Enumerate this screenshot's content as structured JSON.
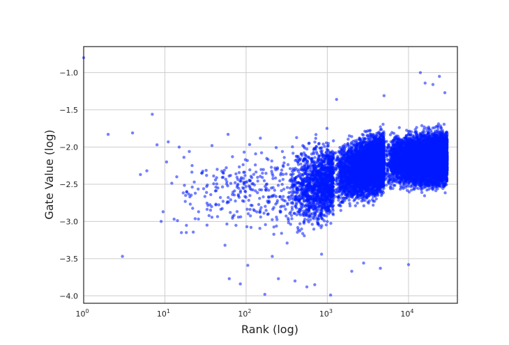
{
  "chart_data": {
    "type": "scatter",
    "title": "",
    "xlabel": "Rank (log)",
    "ylabel": "Gate Value (log)",
    "x_scale": "log",
    "xlim": [
      1,
      40000
    ],
    "ylim": [
      -4.1,
      -0.65
    ],
    "grid": true,
    "legend": "none",
    "point_color": "#0019ff",
    "x_ticks": [
      {
        "value": 1,
        "base": "10",
        "exp": "0"
      },
      {
        "value": 10,
        "base": "10",
        "exp": "1"
      },
      {
        "value": 100,
        "base": "10",
        "exp": "2"
      },
      {
        "value": 1000,
        "base": "10",
        "exp": "3"
      },
      {
        "value": 10000,
        "base": "10",
        "exp": "4"
      }
    ],
    "y_ticks": [
      {
        "value": -1.0,
        "label": "−1.0"
      },
      {
        "value": -1.5,
        "label": "−1.5"
      },
      {
        "value": -2.0,
        "label": "−2.0"
      },
      {
        "value": -2.5,
        "label": "−2.5"
      },
      {
        "value": -3.0,
        "label": "−3.0"
      },
      {
        "value": -3.5,
        "label": "−3.5"
      },
      {
        "value": -4.0,
        "label": "−4.0"
      }
    ],
    "series": [
      {
        "points": [
          [
            1,
            -0.8
          ],
          [
            2,
            -1.83
          ],
          [
            3,
            -3.47
          ],
          [
            4,
            -1.81
          ],
          [
            5,
            -2.37
          ],
          [
            6,
            -2.32
          ],
          [
            7,
            -1.56
          ],
          [
            8,
            -1.97
          ],
          [
            9,
            -3.0
          ],
          [
            9.5,
            -2.87
          ],
          [
            10.5,
            -2.2
          ],
          [
            11,
            -1.93
          ],
          [
            13,
            -2.97
          ],
          [
            14,
            -2.4
          ],
          [
            15,
            -2.0
          ],
          [
            16,
            -3.15
          ],
          [
            18,
            -2.65
          ],
          [
            20,
            -2.06
          ],
          [
            23,
            -2.47
          ],
          [
            26,
            -2.87
          ],
          [
            30,
            -2.56
          ],
          [
            33,
            -3.05
          ],
          [
            38,
            -1.98
          ],
          [
            45,
            -2.55
          ],
          [
            52,
            -2.73
          ],
          [
            55,
            -3.32
          ],
          [
            60,
            -1.83
          ],
          [
            62,
            -3.77
          ],
          [
            68,
            -2.13
          ],
          [
            75,
            -2.36
          ],
          [
            85,
            -3.84
          ],
          [
            95,
            -2.5
          ],
          [
            105,
            -3.59
          ],
          [
            115,
            -3.08
          ],
          [
            130,
            -2.24
          ],
          [
            150,
            -1.88
          ],
          [
            170,
            -3.98
          ],
          [
            190,
            -2.58
          ],
          [
            210,
            -3.47
          ],
          [
            250,
            -3.77
          ],
          [
            280,
            -2.06
          ],
          [
            320,
            -3.29
          ],
          [
            400,
            -3.8
          ],
          [
            450,
            -2.72
          ],
          [
            500,
            -1.98
          ],
          [
            560,
            -3.88
          ],
          [
            700,
            -3.85
          ],
          [
            850,
            -3.44
          ],
          [
            1100,
            -3.99
          ],
          [
            1300,
            -1.36
          ],
          [
            2000,
            -3.67
          ],
          [
            2800,
            -3.56
          ],
          [
            4500,
            -3.63
          ],
          [
            5000,
            -1.31
          ],
          [
            10000,
            -3.58
          ],
          [
            14000,
            -1.0
          ],
          [
            16000,
            -1.14
          ],
          [
            20000,
            -1.16
          ],
          [
            24000,
            -1.05
          ],
          [
            28000,
            -1.27
          ]
        ],
        "cloud": [
          {
            "x_from": 10,
            "x_to": 300,
            "count": 260,
            "y_center_from": -2.62,
            "y_center_to": -2.6,
            "y_spread": 0.4
          },
          {
            "x_from": 300,
            "x_to": 1200,
            "count": 1500,
            "y_center_from": -2.6,
            "y_center_to": -2.45,
            "y_spread": 0.4
          },
          {
            "x_from": 1200,
            "x_to": 5000,
            "count": 5000,
            "y_center_from": -2.4,
            "y_center_to": -2.2,
            "y_spread": 0.3
          },
          {
            "x_from": 5000,
            "x_to": 30000,
            "count": 8000,
            "y_center_from": -2.2,
            "y_center_to": -2.15,
            "y_spread": 0.26
          }
        ]
      }
    ]
  }
}
